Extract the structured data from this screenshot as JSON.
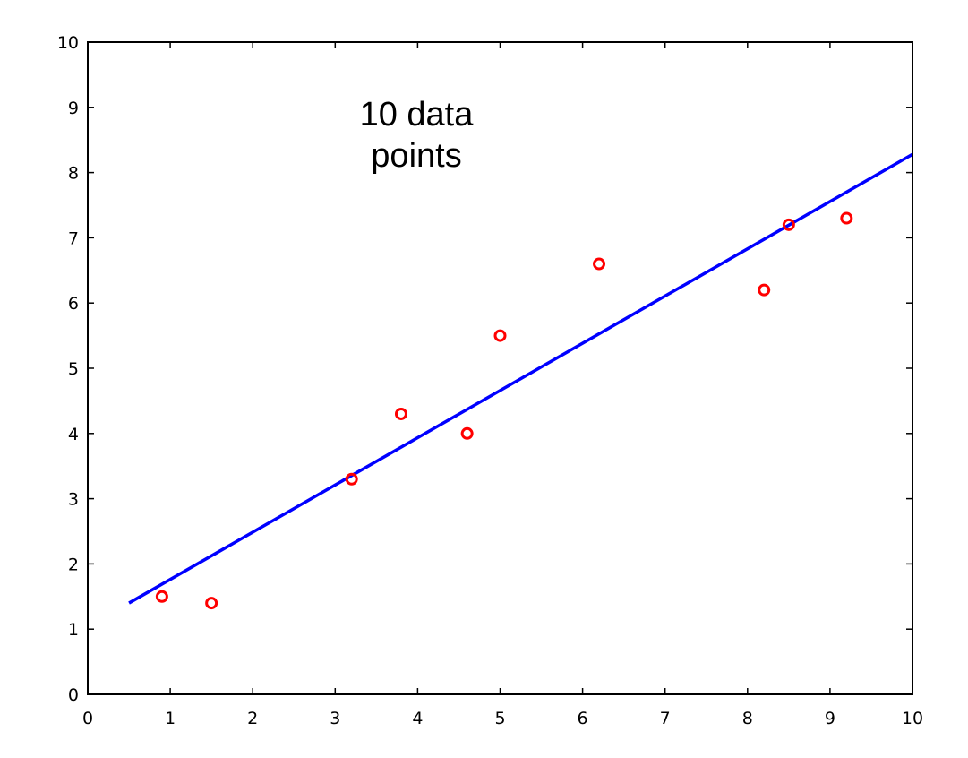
{
  "chart_data": {
    "type": "scatter",
    "title": "",
    "xlabel": "",
    "ylabel": "",
    "xlim": [
      0,
      10
    ],
    "ylim": [
      0,
      10
    ],
    "xticks": [
      "0",
      "1",
      "2",
      "3",
      "4",
      "5",
      "6",
      "7",
      "8",
      "9",
      "10"
    ],
    "yticks": [
      "0",
      "1",
      "2",
      "3",
      "4",
      "5",
      "6",
      "7",
      "8",
      "9",
      "10"
    ],
    "grid": false,
    "annotation": [
      "10 data",
      "points"
    ],
    "series": [
      {
        "type": "scatter",
        "marker": "circle-open",
        "color": "#ff0000",
        "x": [
          0.9,
          1.5,
          3.2,
          3.8,
          4.6,
          5.0,
          6.2,
          8.2,
          8.5,
          9.2
        ],
        "y": [
          1.5,
          1.4,
          3.3,
          4.3,
          4.0,
          5.5,
          6.6,
          6.2,
          7.2,
          7.3
        ]
      },
      {
        "type": "line",
        "color": "#0000ff",
        "x": [
          0.5,
          10.0
        ],
        "y": [
          1.4,
          8.28
        ]
      }
    ]
  }
}
